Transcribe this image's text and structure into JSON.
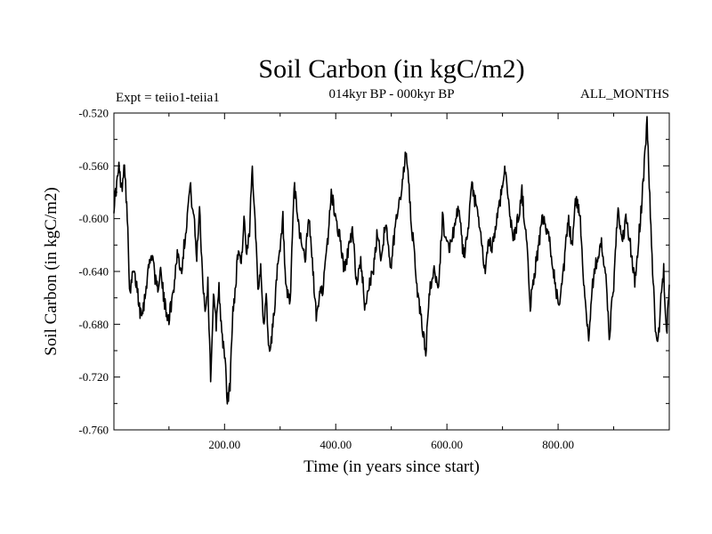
{
  "chart_data": {
    "type": "line",
    "title": "Soil Carbon (in kgC/m2)",
    "subtitle": "014kyr BP - 000kyr BP",
    "experiment": "Expt = teiio1-teiia1",
    "period": "ALL_MONTHS",
    "xlabel": "Time (in years since start)",
    "ylabel": "Soil Carbon (in kgC/m2)",
    "xlim": [
      1,
      1000
    ],
    "ylim": [
      -0.76,
      -0.52
    ],
    "x_ticks": [
      200,
      400,
      600,
      800
    ],
    "x_tick_labels": [
      "200.00",
      "400.00",
      "600.00",
      "800.00"
    ],
    "y_ticks": [
      -0.76,
      -0.72,
      -0.68,
      -0.64,
      -0.6,
      -0.56,
      -0.52
    ],
    "y_tick_labels": [
      "-0.760",
      "-0.720",
      "-0.680",
      "-0.640",
      "-0.600",
      "-0.560",
      "-0.520"
    ],
    "grid": false,
    "series": [
      {
        "color": "#000000",
        "x": [
          1,
          10,
          15,
          20,
          25,
          30,
          35,
          42,
          48,
          55,
          62,
          70,
          78,
          85,
          92,
          100,
          108,
          115,
          122,
          130,
          138,
          145,
          150,
          155,
          160,
          165,
          170,
          175,
          180,
          185,
          190,
          195,
          200,
          205,
          210,
          215,
          220,
          225,
          230,
          235,
          240,
          245,
          250,
          255,
          260,
          265,
          270,
          275,
          280,
          285,
          290,
          295,
          300,
          305,
          310,
          318,
          325,
          335,
          345,
          352,
          360,
          365,
          370,
          378,
          385,
          392,
          400,
          408,
          415,
          422,
          430,
          438,
          445,
          452,
          460,
          468,
          475,
          482,
          490,
          498,
          505,
          512,
          520,
          525,
          530,
          535,
          540,
          548,
          555,
          562,
          570,
          578,
          585,
          592,
          600,
          608,
          615,
          622,
          630,
          638,
          645,
          652,
          660,
          668,
          675,
          682,
          690,
          698,
          705,
          712,
          720,
          728,
          735,
          742,
          750,
          758,
          765,
          772,
          780,
          788,
          795,
          802,
          810,
          818,
          825,
          832,
          840,
          848,
          855,
          862,
          870,
          878,
          885,
          892,
          900,
          908,
          915,
          922,
          930,
          938,
          945,
          950,
          955,
          960,
          965,
          970,
          975,
          980,
          985,
          990,
          995,
          1000
        ],
        "values": [
          -0.59,
          -0.562,
          -0.578,
          -0.555,
          -0.6,
          -0.66,
          -0.64,
          -0.65,
          -0.67,
          -0.665,
          -0.64,
          -0.625,
          -0.655,
          -0.64,
          -0.665,
          -0.675,
          -0.655,
          -0.625,
          -0.64,
          -0.61,
          -0.575,
          -0.6,
          -0.63,
          -0.59,
          -0.64,
          -0.67,
          -0.65,
          -0.72,
          -0.66,
          -0.68,
          -0.65,
          -0.69,
          -0.7,
          -0.74,
          -0.725,
          -0.67,
          -0.65,
          -0.62,
          -0.635,
          -0.6,
          -0.63,
          -0.61,
          -0.56,
          -0.6,
          -0.65,
          -0.64,
          -0.68,
          -0.66,
          -0.7,
          -0.69,
          -0.665,
          -0.64,
          -0.625,
          -0.6,
          -0.655,
          -0.665,
          -0.575,
          -0.61,
          -0.63,
          -0.6,
          -0.645,
          -0.675,
          -0.66,
          -0.65,
          -0.62,
          -0.58,
          -0.6,
          -0.615,
          -0.64,
          -0.625,
          -0.61,
          -0.65,
          -0.63,
          -0.665,
          -0.65,
          -0.64,
          -0.61,
          -0.63,
          -0.6,
          -0.64,
          -0.615,
          -0.59,
          -0.575,
          -0.55,
          -0.565,
          -0.6,
          -0.62,
          -0.66,
          -0.68,
          -0.7,
          -0.65,
          -0.64,
          -0.65,
          -0.6,
          -0.62,
          -0.62,
          -0.6,
          -0.595,
          -0.63,
          -0.61,
          -0.575,
          -0.59,
          -0.61,
          -0.64,
          -0.62,
          -0.62,
          -0.6,
          -0.58,
          -0.56,
          -0.595,
          -0.615,
          -0.6,
          -0.58,
          -0.61,
          -0.665,
          -0.64,
          -0.62,
          -0.6,
          -0.61,
          -0.625,
          -0.65,
          -0.67,
          -0.64,
          -0.6,
          -0.62,
          -0.585,
          -0.6,
          -0.66,
          -0.69,
          -0.65,
          -0.63,
          -0.62,
          -0.64,
          -0.69,
          -0.65,
          -0.59,
          -0.62,
          -0.6,
          -0.62,
          -0.65,
          -0.615,
          -0.59,
          -0.56,
          -0.525,
          -0.585,
          -0.64,
          -0.68,
          -0.695,
          -0.66,
          -0.64,
          -0.69,
          -0.65
        ]
      }
    ]
  }
}
